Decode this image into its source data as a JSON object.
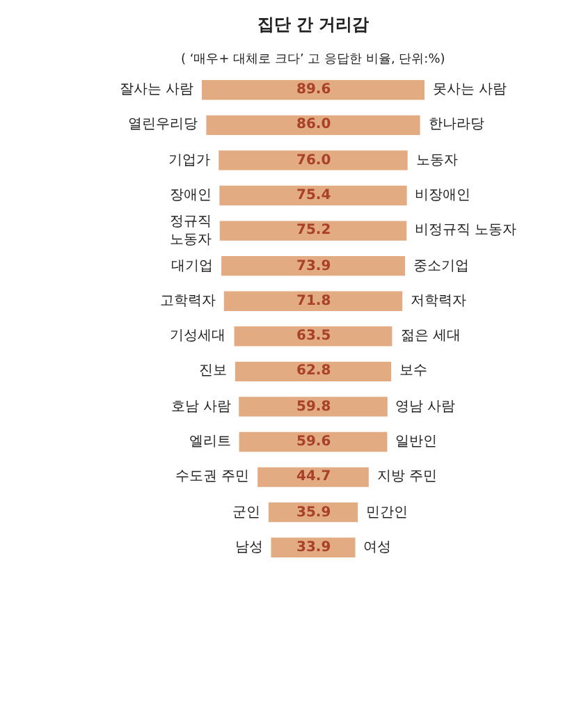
{
  "chart_data": {
    "type": "other",
    "title": "집단 간 거리감",
    "subtitle": "( ‘매우+ 대체로 크다’ 고 응답한 비율, 단위:%)",
    "categories": [
      "잘사는 사람",
      "열린우리당",
      "기업가",
      "장애인",
      "정규직\n노동자",
      "대기업",
      "고학력자",
      "기성세대",
      "진보",
      "호남 사람",
      "엘리트",
      "수도권 주민",
      "군인",
      "남성"
    ],
    "y2_categories": [
      "못사는 사람",
      "한나라당",
      "노동자",
      "비장애인",
      "비정규직 노동자",
      "중소기업",
      "저학력자",
      "젊은 세대",
      "보수",
      "영남 사람",
      "일반인",
      "지방 주민",
      "민간인",
      "여성"
    ],
    "values": [
      89.6,
      86.0,
      76.0,
      75.4,
      75.2,
      73.9,
      71.8,
      63.5,
      62.8,
      59.8,
      59.6,
      44.7,
      35.9,
      33.9
    ],
    "value_labels": [
      "89.6",
      "86.0",
      "76.0",
      "75.4",
      "75.2",
      "73.9",
      "71.8",
      "63.5",
      "62.8",
      "59.8",
      "59.6",
      "44.7",
      "35.9",
      "33.9"
    ],
    "color": "#e2ab82"
  }
}
